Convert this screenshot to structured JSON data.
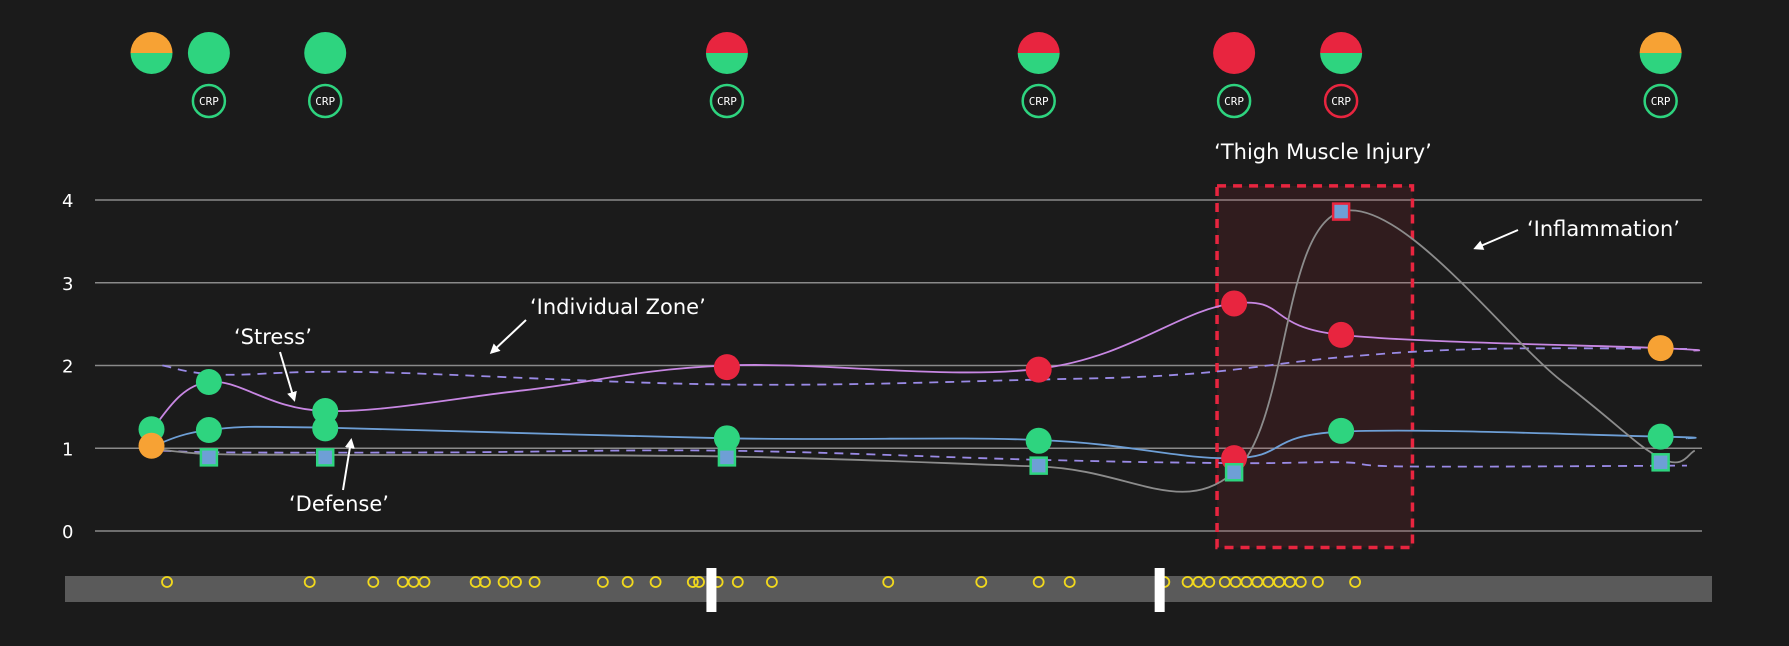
{
  "colors": {
    "background": "#1b1b1b",
    "grid": "#8a8a8a",
    "green": "#2ed47f",
    "red": "#e8253f",
    "orange": "#f7a234",
    "stress_line": "#c887e3",
    "defense_line": "#6e9fd6",
    "inflammation_line": "#8c8c8c",
    "zone_dashed": "#9a8ae6",
    "injury_box": "#e8253f",
    "marker_square": "#6e9fd6",
    "timeline_bar": "#5a5a5a",
    "event_circle": "#f2d91c",
    "timeline_handle": "#ffffff"
  },
  "chart_data": {
    "type": "line",
    "y_ticks": [
      0,
      1,
      2,
      3,
      4
    ],
    "ylim": [
      0,
      4
    ],
    "xlim": [
      0,
      100
    ],
    "grid": "horizontal",
    "status_indicators": [
      {
        "x": 1.0,
        "top": "orange",
        "bottom": "green",
        "crp": null
      },
      {
        "x": 4.7,
        "top": "green",
        "bottom": "green",
        "crp": "green"
      },
      {
        "x": 12.2,
        "top": "green",
        "bottom": "green",
        "crp": "green"
      },
      {
        "x": 38.1,
        "top": "red",
        "bottom": "green",
        "crp": "green"
      },
      {
        "x": 58.2,
        "top": "red",
        "bottom": "green",
        "crp": "green"
      },
      {
        "x": 70.8,
        "top": "red",
        "bottom": "red",
        "crp": "green"
      },
      {
        "x": 77.7,
        "top": "red",
        "bottom": "green",
        "crp": "red"
      },
      {
        "x": 98.3,
        "top": "orange",
        "bottom": "green",
        "crp": "green"
      }
    ],
    "crp_label": "CRP",
    "series": [
      {
        "key": "stress",
        "curve": [
          [
            1.0,
            1.23
          ],
          [
            4.7,
            1.8
          ],
          [
            12.2,
            1.45
          ],
          [
            25.0,
            1.7
          ],
          [
            38.1,
            2.0
          ],
          [
            58.2,
            1.96
          ],
          [
            70.8,
            2.75
          ],
          [
            77.7,
            2.37
          ],
          [
            98.3,
            2.21
          ],
          [
            100.5,
            2.18
          ]
        ],
        "points": [
          {
            "x": 1.0,
            "y": 1.23,
            "color": "green"
          },
          {
            "x": 4.7,
            "y": 1.8,
            "color": "green"
          },
          {
            "x": 12.2,
            "y": 1.45,
            "color": "green"
          },
          {
            "x": 38.1,
            "y": 1.98,
            "color": "red"
          },
          {
            "x": 58.2,
            "y": 1.95,
            "color": "red"
          },
          {
            "x": 70.8,
            "y": 2.75,
            "color": "red"
          },
          {
            "x": 77.7,
            "y": 2.37,
            "color": "red"
          },
          {
            "x": 98.3,
            "y": 2.21,
            "color": "orange"
          }
        ]
      },
      {
        "key": "defense",
        "curve": [
          [
            1.0,
            1.02
          ],
          [
            4.7,
            1.22
          ],
          [
            12.2,
            1.25
          ],
          [
            38.1,
            1.12
          ],
          [
            58.2,
            1.1
          ],
          [
            70.8,
            0.88
          ],
          [
            77.7,
            1.2
          ],
          [
            98.3,
            1.14
          ],
          [
            100.0,
            1.12
          ]
        ],
        "points": [
          {
            "x": 1.0,
            "y": 1.03,
            "color": "orange"
          },
          {
            "x": 4.7,
            "y": 1.22,
            "color": "green"
          },
          {
            "x": 12.2,
            "y": 1.24,
            "color": "green"
          },
          {
            "x": 38.1,
            "y": 1.12,
            "color": "green"
          },
          {
            "x": 58.2,
            "y": 1.09,
            "color": "green"
          },
          {
            "x": 70.8,
            "y": 0.88,
            "color": "red"
          },
          {
            "x": 77.7,
            "y": 1.21,
            "color": "green"
          },
          {
            "x": 98.3,
            "y": 1.14,
            "color": "green"
          }
        ]
      },
      {
        "key": "inflammation",
        "curve": [
          [
            1.0,
            1.0
          ],
          [
            4.7,
            0.93
          ],
          [
            12.2,
            0.92
          ],
          [
            38.1,
            0.9
          ],
          [
            58.2,
            0.78
          ],
          [
            70.8,
            0.71
          ],
          [
            77.7,
            3.86
          ],
          [
            92.0,
            1.8
          ],
          [
            98.3,
            0.88
          ],
          [
            100.5,
            0.97
          ]
        ],
        "points": [
          {
            "x": 4.7,
            "y": 0.89,
            "color": "green"
          },
          {
            "x": 12.2,
            "y": 0.89,
            "color": "green"
          },
          {
            "x": 38.1,
            "y": 0.89,
            "color": "green"
          },
          {
            "x": 58.2,
            "y": 0.79,
            "color": "green"
          },
          {
            "x": 70.8,
            "y": 0.71,
            "color": "green"
          },
          {
            "x": 77.7,
            "y": 3.86,
            "color": "red"
          },
          {
            "x": 98.3,
            "y": 0.83,
            "color": "green"
          }
        ]
      }
    ],
    "zones": [
      {
        "key": "stress_zone",
        "curve": [
          [
            1.7,
            2.0
          ],
          [
            5.5,
            1.89
          ],
          [
            15.0,
            1.92
          ],
          [
            38.1,
            1.77
          ],
          [
            58.2,
            1.83
          ],
          [
            68.0,
            1.9
          ],
          [
            77.7,
            2.1
          ],
          [
            87.0,
            2.2
          ],
          [
            100.0,
            2.2
          ]
        ]
      },
      {
        "key": "defense_zone",
        "curve": [
          [
            1.7,
            0.97
          ],
          [
            6.0,
            0.95
          ],
          [
            20.0,
            0.95
          ],
          [
            38.1,
            0.97
          ],
          [
            58.2,
            0.86
          ],
          [
            70.8,
            0.82
          ],
          [
            77.7,
            0.83
          ],
          [
            82.0,
            0.78
          ],
          [
            100.0,
            0.79
          ]
        ]
      }
    ],
    "injury_region": {
      "x_start": 69.7,
      "x_end": 82.3,
      "y_start": -0.2,
      "y_end": 4.17
    },
    "annotations": [
      {
        "key": "thigh",
        "text": "‘Thigh Muscle Injury’"
      },
      {
        "key": "inflammation",
        "text": "‘Inflammation’"
      },
      {
        "key": "zone",
        "text": "‘Individual Zone’"
      },
      {
        "key": "stress",
        "text": "‘Stress’"
      },
      {
        "key": "defense",
        "text": "‘Defense’"
      }
    ],
    "timeline": {
      "events": [
        2.0,
        11.2,
        15.3,
        17.2,
        17.9,
        18.6,
        21.9,
        22.5,
        23.7,
        24.5,
        25.7,
        30.1,
        31.7,
        33.5,
        35.9,
        36.3,
        37.5,
        38.8,
        41.0,
        48.5,
        54.5,
        58.2,
        60.2,
        66.3,
        67.8,
        68.5,
        69.2,
        70.2,
        70.9,
        71.6,
        72.3,
        73.0,
        73.7,
        74.4,
        75.1,
        76.2,
        78.6
      ],
      "handles": [
        37.1,
        66.0
      ]
    }
  }
}
